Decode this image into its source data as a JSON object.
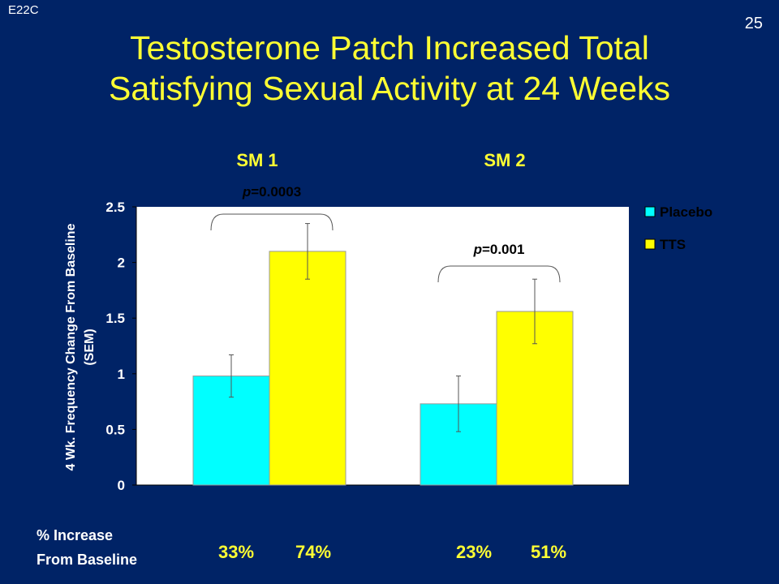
{
  "slide": {
    "code": "E22C",
    "number": "25",
    "title_line1": "Testosterone Patch Increased Total",
    "title_line2": "Satisfying Sexual Activity at 24 Weeks"
  },
  "chart_data": {
    "type": "bar",
    "categories": [
      "SM 1",
      "SM 2"
    ],
    "series": [
      {
        "name": "Placebo",
        "values": [
          0.98,
          0.73
        ],
        "errors": [
          0.19,
          0.25
        ],
        "color": "#00ffff",
        "pct_increase": [
          "33%",
          "23%"
        ]
      },
      {
        "name": "TTS",
        "values": [
          2.1,
          1.56
        ],
        "errors": [
          0.25,
          0.29
        ],
        "color": "#ffff00",
        "pct_increase": [
          "74%",
          "51%"
        ]
      }
    ],
    "ylabel_line1": "4 Wk. Frequency Change From Baseline",
    "ylabel_line2": "(SEM)",
    "yticks": [
      "0",
      "0.5",
      "1",
      "1.5",
      "2",
      "2.5"
    ],
    "ylim": [
      0,
      2.5
    ],
    "legend_position": "top-right",
    "grid": false,
    "annotations": [
      {
        "category": "SM 1",
        "prefix": "p",
        "text": "=0.0003"
      },
      {
        "category": "SM 2",
        "prefix": "p",
        "text": "=0.001"
      }
    ],
    "footer_label_line1": "% Increase",
    "footer_label_line2": "From Baseline"
  },
  "colors": {
    "background": "#002366",
    "title": "#ffff33",
    "placebo": "#00ffff",
    "tts": "#ffff00",
    "plot_bg": "#ffffff"
  }
}
